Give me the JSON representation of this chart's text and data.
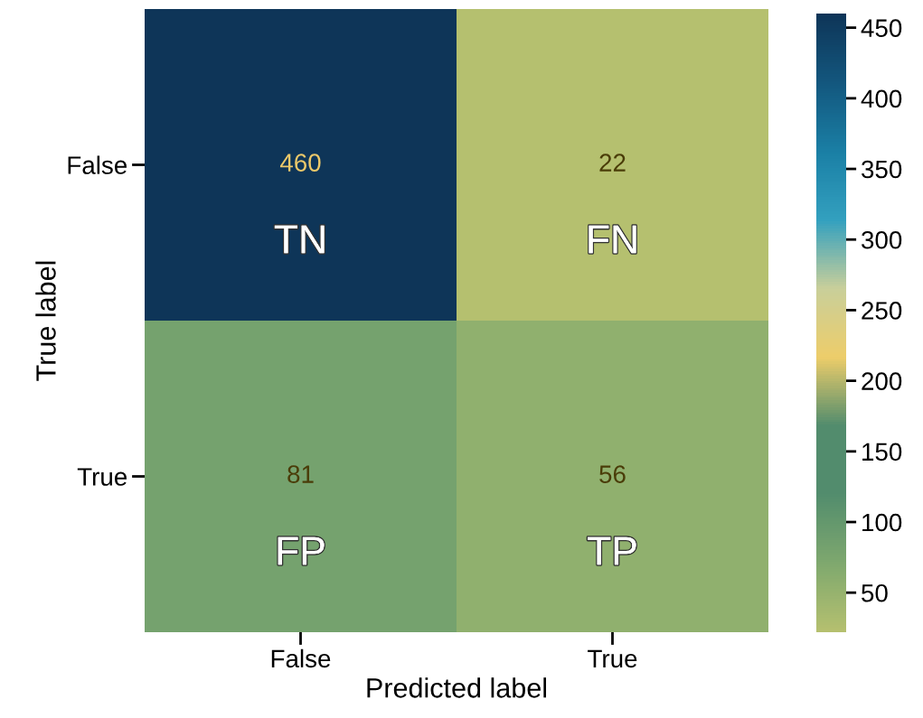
{
  "chart_data": {
    "type": "heatmap",
    "xlabel": "Predicted label",
    "ylabel": "True label",
    "categories": [
      "False",
      "True"
    ],
    "y_categories": [
      "False",
      "True"
    ],
    "cells": [
      [
        460,
        22
      ],
      [
        81,
        56
      ]
    ],
    "data_labels": true,
    "annotations": [
      "TN",
      "FN",
      "FP",
      "TP"
    ],
    "colors": [
      "#b5c06f",
      "#7ea86e",
      "#528c6d",
      "#528c6d",
      "#edcd6a",
      "#c9cf9a",
      "#33a0bf",
      "#1a7fa5",
      "#13577e",
      "#0e3558"
    ],
    "clim": [
      22,
      460
    ],
    "cticks": [
      50,
      100,
      150,
      200,
      250,
      300,
      350,
      400,
      450
    ]
  }
}
